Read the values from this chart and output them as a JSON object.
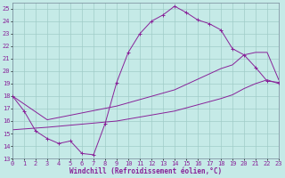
{
  "xlabel": "Windchill (Refroidissement éolien,°C)",
  "bg_color": "#c5eae7",
  "grid_color": "#a0ccc8",
  "line_color": "#882299",
  "xlim": [
    0,
    23
  ],
  "ylim": [
    13,
    25.5
  ],
  "yticks": [
    13,
    14,
    15,
    16,
    17,
    18,
    19,
    20,
    21,
    22,
    23,
    24,
    25
  ],
  "xticks": [
    0,
    1,
    2,
    3,
    4,
    5,
    6,
    7,
    8,
    9,
    10,
    11,
    12,
    13,
    14,
    15,
    16,
    17,
    18,
    19,
    20,
    21,
    22,
    23
  ],
  "line1_x": [
    0,
    1,
    2,
    3,
    4,
    5,
    6,
    7,
    8,
    9,
    10,
    11,
    12,
    13,
    14,
    15,
    16,
    17,
    18,
    19,
    20,
    21,
    22,
    23
  ],
  "line1_y": [
    18.0,
    16.8,
    15.2,
    14.6,
    14.2,
    14.4,
    13.4,
    13.3,
    15.8,
    19.1,
    21.5,
    23.0,
    24.0,
    24.5,
    25.2,
    24.7,
    24.1,
    23.8,
    23.3,
    21.8,
    21.3,
    20.3,
    19.2,
    19.1
  ],
  "line2_x": [
    0,
    3,
    9,
    14,
    18,
    19,
    20,
    21,
    22,
    23
  ],
  "line2_y": [
    18.0,
    16.1,
    17.2,
    18.5,
    20.2,
    20.5,
    21.3,
    21.5,
    21.5,
    19.3
  ],
  "line3_x": [
    0,
    3,
    9,
    14,
    18,
    19,
    20,
    21,
    22,
    23
  ],
  "line3_y": [
    15.3,
    15.5,
    16.0,
    16.8,
    17.8,
    18.1,
    18.6,
    19.0,
    19.3,
    19.0
  ],
  "tick_fontsize": 5,
  "xlabel_fontsize": 5.5
}
